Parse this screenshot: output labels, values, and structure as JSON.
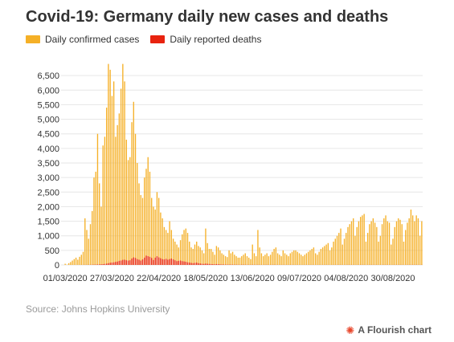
{
  "title": "Covid-19: Germany daily new cases and deaths",
  "source": "Source: Johns Hopkins University",
  "branding": {
    "icon": "flourish-logo-icon",
    "label": "A Flourish chart"
  },
  "colors": {
    "cases": "#f5b027",
    "deaths": "#e8230f",
    "grid": "#e6e6e6"
  },
  "chart_data": {
    "type": "bar",
    "x_range": [
      "01/03/2020",
      "13/09/2020"
    ],
    "xticks": [
      "01/03/2020",
      "27/03/2020",
      "22/04/2020",
      "18/05/2020",
      "13/06/2020",
      "09/07/2020",
      "04/08/2020",
      "30/08/2020"
    ],
    "ylim": [
      0,
      7000
    ],
    "yticks": [
      0,
      500,
      1000,
      1500,
      2000,
      2500,
      3000,
      3500,
      4000,
      4500,
      5000,
      5500,
      6000,
      6500
    ],
    "ytick_labels": [
      "0",
      "500",
      "1,000",
      "1,500",
      "2,000",
      "2,500",
      "3,000",
      "3,500",
      "4,000",
      "4,500",
      "5,000",
      "5,500",
      "6,000",
      "6,500"
    ],
    "grid": true,
    "legend_position": "top-left",
    "series": [
      {
        "name": "Daily confirmed cases",
        "values": [
          40,
          10,
          60,
          100,
          150,
          200,
          250,
          180,
          280,
          350,
          450,
          1600,
          1200,
          900,
          1400,
          1850,
          3000,
          3200,
          4500,
          2800,
          2000,
          4100,
          4400,
          5400,
          6900,
          6700,
          5800,
          6300,
          4400,
          4800,
          5200,
          6050,
          6900,
          6300,
          4300,
          3600,
          3700,
          4900,
          5600,
          4500,
          3500,
          2800,
          2400,
          2300,
          3000,
          3300,
          3700,
          3200,
          2300,
          2000,
          1900,
          2500,
          2300,
          1800,
          1600,
          1300,
          1200,
          1100,
          1500,
          1200,
          900,
          800,
          700,
          600,
          850,
          1050,
          1200,
          1250,
          1100,
          800,
          600,
          550,
          700,
          800,
          650,
          600,
          500,
          400,
          1250,
          750,
          550,
          550,
          450,
          350,
          650,
          600,
          500,
          400,
          350,
          300,
          270,
          500,
          400,
          450,
          350,
          300,
          250,
          250,
          300,
          350,
          400,
          300,
          250,
          200,
          700,
          400,
          300,
          1200,
          600,
          400,
          300,
          350,
          400,
          300,
          350,
          450,
          550,
          600,
          400,
          350,
          300,
          500,
          400,
          350,
          300,
          400,
          450,
          500,
          500,
          450,
          400,
          350,
          300,
          350,
          400,
          450,
          500,
          550,
          600,
          400,
          350,
          450,
          550,
          600,
          650,
          700,
          750,
          500,
          600,
          800,
          900,
          1000,
          1100,
          1250,
          700,
          900,
          1100,
          1300,
          1400,
          1500,
          1600,
          1000,
          1300,
          1500,
          1650,
          1700,
          1750,
          800,
          1100,
          1400,
          1500,
          1600,
          1450,
          1300,
          800,
          1000,
          1400,
          1600,
          1700,
          1500,
          1450,
          700,
          900,
          1300,
          1500,
          1600,
          1550,
          1400,
          800,
          1200,
          1450,
          1600,
          1900,
          1700,
          1500,
          1700,
          1600,
          1000,
          1500
        ]
      },
      {
        "name": "Daily reported deaths",
        "values": [
          0,
          0,
          0,
          0,
          0,
          0,
          0,
          0,
          0,
          1,
          2,
          3,
          3,
          5,
          5,
          8,
          10,
          12,
          15,
          18,
          22,
          28,
          35,
          45,
          60,
          75,
          80,
          90,
          105,
          115,
          140,
          150,
          175,
          180,
          160,
          150,
          160,
          220,
          260,
          240,
          200,
          180,
          150,
          190,
          250,
          320,
          300,
          280,
          240,
          170,
          250,
          300,
          260,
          230,
          200,
          190,
          210,
          180,
          200,
          220,
          190,
          160,
          130,
          140,
          150,
          130,
          120,
          110,
          90,
          80,
          70,
          60,
          70,
          80,
          60,
          50,
          40,
          35,
          45,
          40,
          35,
          30,
          25,
          20,
          30,
          25,
          20,
          15,
          15,
          12,
          10,
          10,
          12,
          10,
          8,
          8,
          6,
          6,
          8,
          8,
          6,
          5,
          5,
          4,
          6,
          5,
          4,
          5,
          4,
          3,
          3,
          4,
          5,
          4,
          3,
          4,
          5,
          4,
          3,
          2,
          2,
          3,
          3,
          2,
          2,
          3,
          3,
          2,
          2,
          2,
          2,
          1,
          1,
          2,
          2,
          2,
          2,
          2,
          2,
          1,
          1,
          2,
          2,
          2,
          2,
          2,
          2,
          1,
          1,
          2,
          2,
          3,
          3,
          3,
          1,
          2,
          2,
          3,
          3,
          3,
          3,
          1,
          2,
          3,
          3,
          3,
          3,
          1,
          2,
          3,
          3,
          3,
          3,
          3,
          1,
          2,
          3,
          3,
          3,
          3,
          3,
          1,
          2,
          3,
          3,
          3,
          3,
          3,
          1,
          2,
          3,
          3,
          4,
          4,
          3,
          4,
          3,
          2,
          3
        ]
      }
    ]
  }
}
